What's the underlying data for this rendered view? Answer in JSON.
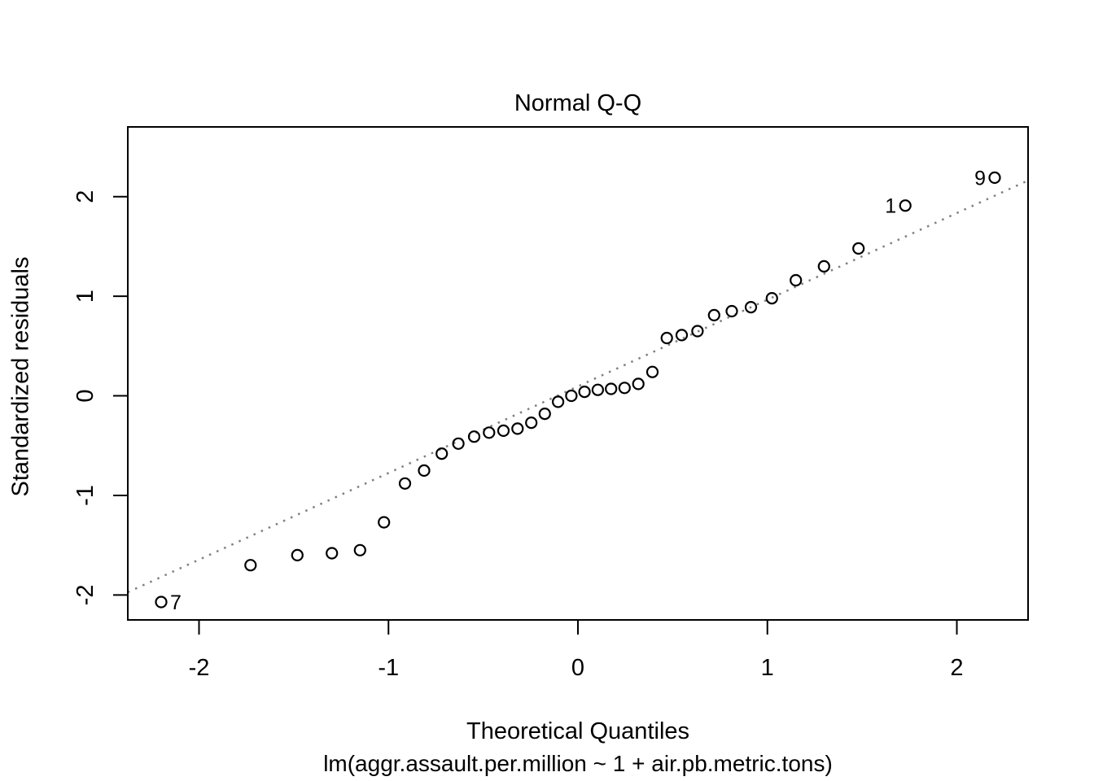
{
  "figure": {
    "title": "Normal Q-Q",
    "xlabel": "Theoretical Quantiles",
    "ylabel": "Standardized residuals",
    "sub_caption": "lm(aggr.assault.per.million ~ 1 + air.pb.metric.tons)"
  },
  "colors": {
    "background": "#ffffff",
    "foreground": "#000000",
    "reference_line": "#7f7f7f"
  },
  "chart_data": {
    "type": "scatter",
    "title": "Normal Q-Q",
    "xlabel": "Theoretical Quantiles",
    "ylabel": "Standardized residuals",
    "subtitle": "lm(aggr.assault.per.million ~ 1 + air.pb.metric.tons)",
    "grid": false,
    "legend": null,
    "marker": {
      "shape": "open-circle",
      "color": "#000000"
    },
    "xlim": [
      -2.376,
      2.376
    ],
    "ylim": [
      -2.25,
      2.7
    ],
    "x_ticks": [
      {
        "value": -2,
        "label": "-2"
      },
      {
        "value": -1,
        "label": "-1"
      },
      {
        "value": 0,
        "label": "0"
      },
      {
        "value": 1,
        "label": "1"
      },
      {
        "value": 2,
        "label": "2"
      }
    ],
    "y_ticks": [
      {
        "value": -2,
        "label": "-2"
      },
      {
        "value": -1,
        "label": "-1"
      },
      {
        "value": 0,
        "label": "0"
      },
      {
        "value": 1,
        "label": "1"
      },
      {
        "value": 2,
        "label": "2"
      }
    ],
    "reference_line": {
      "type": "qqline",
      "slope": 0.87,
      "intercept": 0.095,
      "line_style": "dotted",
      "color": "#7f7f7f"
    },
    "series": [
      {
        "name": "standardized-residuals",
        "points": [
          {
            "x": -2.2,
            "y": -2.07
          },
          {
            "x": -1.728,
            "y": -1.7
          },
          {
            "x": -1.481,
            "y": -1.6
          },
          {
            "x": -1.299,
            "y": -1.58
          },
          {
            "x": -1.15,
            "y": -1.55
          },
          {
            "x": -1.024,
            "y": -1.27
          },
          {
            "x": -0.913,
            "y": -0.88
          },
          {
            "x": -0.812,
            "y": -0.75
          },
          {
            "x": -0.719,
            "y": -0.58
          },
          {
            "x": -0.631,
            "y": -0.48
          },
          {
            "x": -0.548,
            "y": -0.41
          },
          {
            "x": -0.469,
            "y": -0.37
          },
          {
            "x": -0.393,
            "y": -0.35
          },
          {
            "x": -0.319,
            "y": -0.33
          },
          {
            "x": -0.246,
            "y": -0.27
          },
          {
            "x": -0.175,
            "y": -0.18
          },
          {
            "x": -0.105,
            "y": -0.06
          },
          {
            "x": -0.035,
            "y": 0.0
          },
          {
            "x": 0.035,
            "y": 0.04
          },
          {
            "x": 0.105,
            "y": 0.06
          },
          {
            "x": 0.175,
            "y": 0.07
          },
          {
            "x": 0.246,
            "y": 0.08
          },
          {
            "x": 0.319,
            "y": 0.12
          },
          {
            "x": 0.393,
            "y": 0.24
          },
          {
            "x": 0.469,
            "y": 0.58
          },
          {
            "x": 0.548,
            "y": 0.61
          },
          {
            "x": 0.631,
            "y": 0.65
          },
          {
            "x": 0.719,
            "y": 0.81
          },
          {
            "x": 0.812,
            "y": 0.85
          },
          {
            "x": 0.913,
            "y": 0.89
          },
          {
            "x": 1.024,
            "y": 0.98
          },
          {
            "x": 1.15,
            "y": 1.16
          },
          {
            "x": 1.299,
            "y": 1.3
          },
          {
            "x": 1.481,
            "y": 1.48
          },
          {
            "x": 1.728,
            "y": 1.91
          },
          {
            "x": 2.2,
            "y": 2.19
          }
        ]
      }
    ],
    "point_labels": [
      {
        "text": "7",
        "x": -2.2,
        "y": -2.07,
        "side": "right"
      },
      {
        "text": "1",
        "x": 1.728,
        "y": 1.91,
        "side": "left"
      },
      {
        "text": "9",
        "x": 2.2,
        "y": 2.19,
        "side": "left"
      }
    ]
  }
}
